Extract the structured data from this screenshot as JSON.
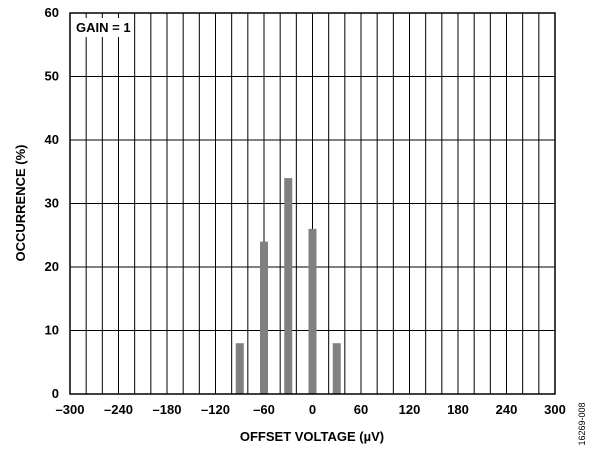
{
  "chart_data": {
    "type": "bar",
    "xlabel": "OFFSET VOLTAGE (µV)",
    "ylabel": "OCCURRENCE (%)",
    "xlim": [
      -300,
      300
    ],
    "ylim": [
      0,
      60
    ],
    "x_ticks": [
      -300,
      -240,
      -180,
      -120,
      -60,
      0,
      60,
      120,
      180,
      240,
      300
    ],
    "x_tick_labels": [
      "–300",
      "–240",
      "–180",
      "–120",
      "–60",
      "0",
      "60",
      "120",
      "180",
      "240",
      "300"
    ],
    "y_ticks": [
      0,
      10,
      20,
      30,
      40,
      50,
      60
    ],
    "y_tick_labels": [
      "0",
      "10",
      "20",
      "30",
      "40",
      "50",
      "60"
    ],
    "x_grid_step": 20,
    "grid": true,
    "annotation": "GAIN = 1",
    "bar_width": 8,
    "bars": [
      {
        "x": -90,
        "value": 8
      },
      {
        "x": -60,
        "value": 24
      },
      {
        "x": -30,
        "value": 34
      },
      {
        "x": 0,
        "value": 26
      },
      {
        "x": 30,
        "value": 8
      }
    ],
    "bar_color": "#808080"
  },
  "figure_id": "16269-008"
}
